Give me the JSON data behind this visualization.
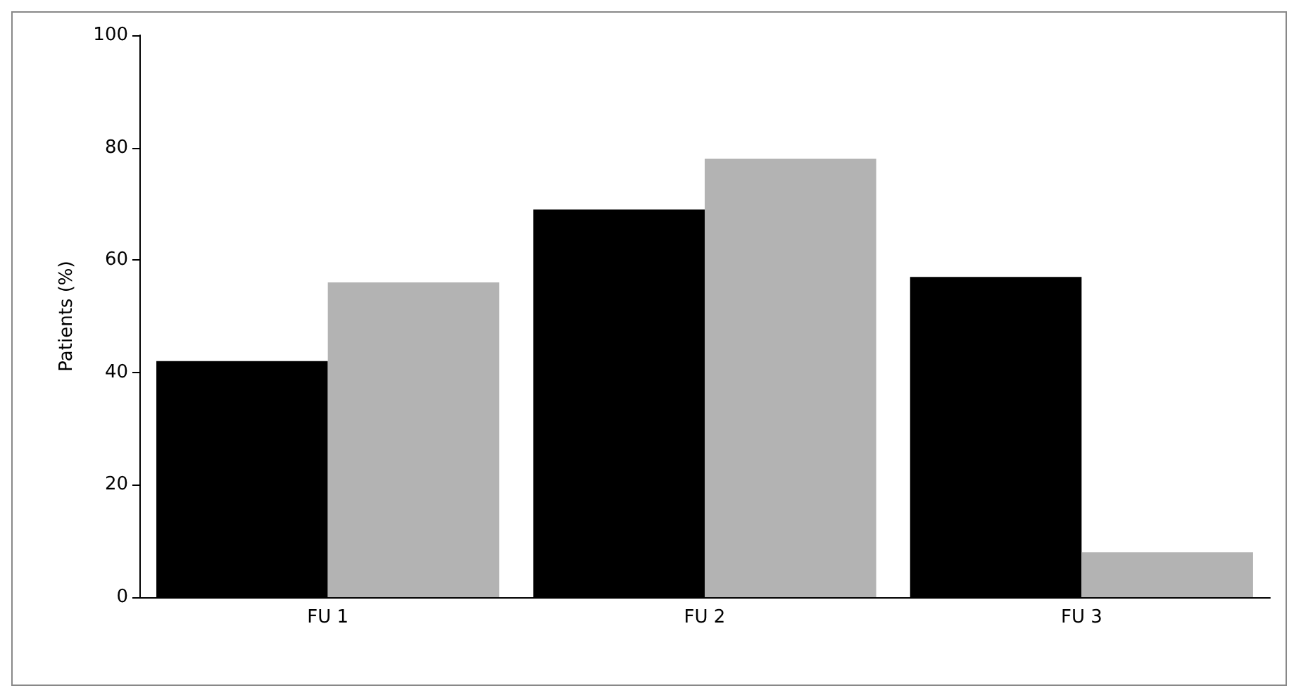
{
  "chart_data": {
    "type": "bar",
    "ylabel": "Patients (%)",
    "categories": [
      "FU 1",
      "FU 2",
      "FU 3"
    ],
    "series": [
      {
        "color": "#000000",
        "values": [
          42,
          69,
          57
        ]
      },
      {
        "color": "#b3b3b3",
        "values": [
          56,
          78,
          8
        ]
      }
    ],
    "ylim": [
      0,
      100
    ],
    "yticks": [
      0,
      20,
      40,
      60,
      80,
      100
    ],
    "grid": false
  }
}
